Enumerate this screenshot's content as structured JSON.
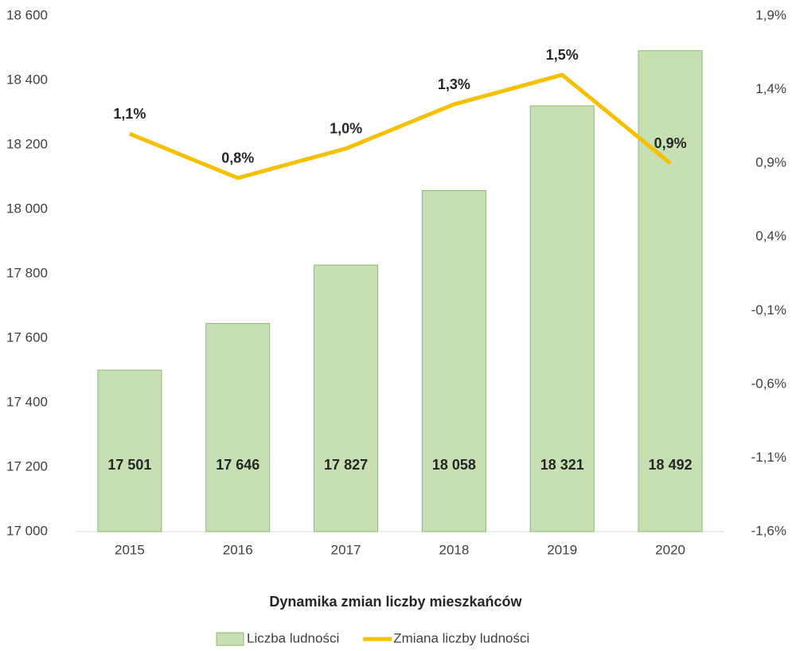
{
  "chart_data": {
    "type": "bar",
    "title": "Dynamika zmian liczby mieszkańców",
    "categories": [
      "2015",
      "2016",
      "2017",
      "2018",
      "2019",
      "2020"
    ],
    "series": [
      {
        "name": "Liczba ludności",
        "type": "bar",
        "color": "#c6e0b4",
        "values": [
          17501,
          17646,
          17827,
          18058,
          18321,
          18492
        ],
        "value_labels": [
          "17 501",
          "17 646",
          "17 827",
          "18 058",
          "18 321",
          "18 492"
        ]
      },
      {
        "name": "Zmiana liczby ludności",
        "type": "line",
        "axis": "y2",
        "color": "#f5c000",
        "values": [
          1.1,
          0.8,
          1.0,
          1.3,
          1.5,
          0.9
        ],
        "value_labels": [
          "1,1%",
          "0,8%",
          "1,0%",
          "1,3%",
          "1,5%",
          "0,9%"
        ]
      }
    ],
    "ylim": [
      17000,
      18600
    ],
    "yticks": [
      {
        "value": 17000,
        "label": "17 000"
      },
      {
        "value": 17200,
        "label": "17 200"
      },
      {
        "value": 17400,
        "label": "17 400"
      },
      {
        "value": 17600,
        "label": "17 600"
      },
      {
        "value": 17800,
        "label": "17 800"
      },
      {
        "value": 18000,
        "label": "18 000"
      },
      {
        "value": 18200,
        "label": "18 200"
      },
      {
        "value": 18400,
        "label": "18 400"
      },
      {
        "value": 18600,
        "label": "18 600"
      }
    ],
    "y2lim": [
      -1.6,
      1.9
    ],
    "y2ticks": [
      {
        "value": -1.6,
        "label": "-1,6%"
      },
      {
        "value": -1.1,
        "label": "-1,1%"
      },
      {
        "value": -0.6,
        "label": "-0,6%"
      },
      {
        "value": -0.1,
        "label": "-0,1%"
      },
      {
        "value": 0.4,
        "label": "0,4%"
      },
      {
        "value": 0.9,
        "label": "0,9%"
      },
      {
        "value": 1.4,
        "label": "1,4%"
      },
      {
        "value": 1.9,
        "label": "1,9%"
      }
    ],
    "grid": false,
    "legend": "bottom"
  }
}
